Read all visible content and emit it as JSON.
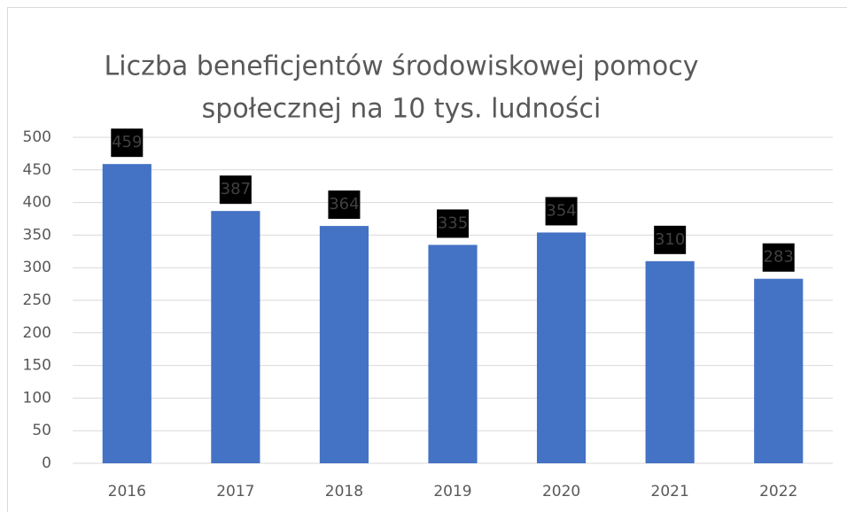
{
  "chart_data": {
    "type": "bar",
    "title": [
      "Liczba beneficjentów środowiskowej pomocy",
      "społecznej na 10 tys. ludności"
    ],
    "categories": [
      "2016",
      "2017",
      "2018",
      "2019",
      "2020",
      "2021",
      "2022"
    ],
    "values": [
      459,
      387,
      364,
      335,
      354,
      310,
      283
    ],
    "color": "#4472c4",
    "ylim": [
      0,
      500
    ],
    "yticks": [
      0,
      50,
      100,
      150,
      200,
      250,
      300,
      350,
      400,
      450,
      500
    ],
    "grid": true
  }
}
